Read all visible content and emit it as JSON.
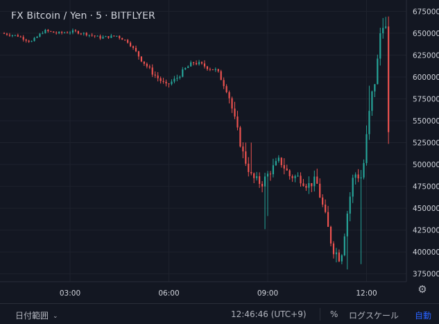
{
  "title": {
    "symbol": "FX Bitcoin / Yen",
    "interval": "5",
    "exchange": "BITFLYER"
  },
  "bottom_bar": {
    "date_range_label": "日付範囲",
    "clock": "12:46:46 (UTC+9)",
    "percent_label": "%",
    "log_label": "ログスケール",
    "auto_label": "自動"
  },
  "colors": {
    "background": "#131722",
    "up": "#26a69a",
    "down": "#ef5350",
    "grid": "#1e222d",
    "text": "#d1d4dc",
    "accent": "#2962ff"
  },
  "icons": {
    "date_range_chevron": "chevron-down-icon",
    "settings": "gear-icon"
  },
  "chart_data": {
    "type": "candlestick",
    "ylim": [
      366000,
      688000
    ],
    "yticks": [
      375000,
      400000,
      425000,
      450000,
      475000,
      500000,
      525000,
      550000,
      575000,
      600000,
      625000,
      650000,
      675000
    ],
    "ytick_labels": [
      "375000",
      "400000",
      "425000",
      "450000",
      "475000",
      "500000",
      "525000",
      "550000",
      "575000",
      "600000",
      "625000",
      "650000",
      "675000"
    ],
    "xlim_hours": [
      1.0,
      13.1
    ],
    "xticks": [
      "03:00",
      "06:00",
      "09:00",
      "12:00"
    ],
    "grid": true,
    "anchors": [
      [
        1.0,
        650000
      ],
      [
        1.5,
        647000
      ],
      [
        1.9,
        640000
      ],
      [
        2.3,
        653000
      ],
      [
        2.7,
        650000
      ],
      [
        3.2,
        652000
      ],
      [
        3.6,
        649000
      ],
      [
        4.0,
        645000
      ],
      [
        4.5,
        647000
      ],
      [
        4.85,
        640000
      ],
      [
        5.25,
        620000
      ],
      [
        5.6,
        604000
      ],
      [
        6.0,
        590000
      ],
      [
        6.3,
        598000
      ],
      [
        6.6,
        610000
      ],
      [
        6.85,
        617000
      ],
      [
        7.2,
        612000
      ],
      [
        7.55,
        607000
      ],
      [
        7.9,
        580000
      ],
      [
        8.15,
        540000
      ],
      [
        8.35,
        510000
      ],
      [
        8.6,
        485000
      ],
      [
        8.9,
        478000
      ],
      [
        9.15,
        492000
      ],
      [
        9.45,
        505000
      ],
      [
        9.75,
        487000
      ],
      [
        10.05,
        485000
      ],
      [
        10.3,
        476000
      ],
      [
        10.55,
        482000
      ],
      [
        10.8,
        445000
      ],
      [
        11.05,
        405000
      ],
      [
        11.3,
        392000
      ],
      [
        11.5,
        445000
      ],
      [
        11.7,
        490000
      ],
      [
        11.95,
        485000
      ],
      [
        12.2,
        568000
      ],
      [
        12.4,
        610000
      ],
      [
        12.55,
        670000
      ],
      [
        12.68,
        652000
      ],
      [
        12.73,
        528000
      ]
    ],
    "overrides": [
      {
        "i": 146,
        "o": 613000,
        "h": 621000,
        "l": 608000,
        "c": 613000
      },
      {
        "i": 147,
        "o": 620000,
        "h": 633000,
        "l": 614000,
        "c": 628000
      },
      {
        "i": 148,
        "o": 660000,
        "h": 678000,
        "l": 638000,
        "c": 672000
      },
      {
        "i": 149,
        "o": 672000,
        "h": 678000,
        "l": 640000,
        "c": 654000
      },
      {
        "i": 150,
        "o": 654000,
        "h": 668000,
        "l": 625000,
        "c": 630000
      },
      {
        "i": 151,
        "o": 628000,
        "h": 632000,
        "l": 526000,
        "c": 531000
      }
    ]
  }
}
